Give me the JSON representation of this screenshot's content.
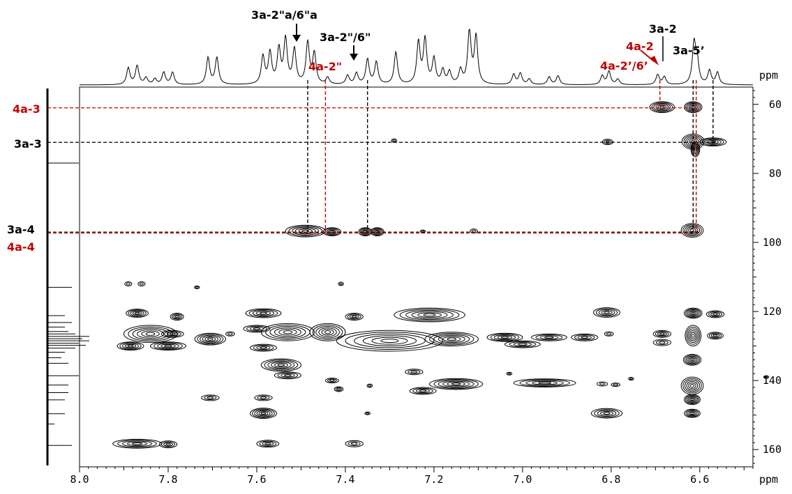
{
  "chart_data": {
    "type": "2D-NMR contour (HSQC/HMBC)",
    "x_axis": {
      "label": "ppm",
      "range": [
        8.0,
        6.48
      ],
      "ticks": [
        8.0,
        7.8,
        7.6,
        7.4,
        7.2,
        7.0,
        6.8,
        6.6
      ],
      "tick_labels": [
        "8.0",
        "7.8",
        "7.6",
        "7.4",
        "7.2",
        "7.0",
        "6.8",
        "6.6"
      ]
    },
    "y_axis": {
      "label": "ppm",
      "range": [
        55,
        165
      ],
      "ticks": [
        60,
        80,
        100,
        120,
        140,
        160
      ],
      "tick_labels": [
        "60",
        "80",
        "100",
        "120",
        "140",
        "160"
      ]
    },
    "colors": {
      "black": "#000000",
      "red": "#c00000"
    },
    "top_spectrum_peaks": [
      {
        "x": 7.89,
        "h": 0.3
      },
      {
        "x": 7.87,
        "h": 0.34
      },
      {
        "x": 7.85,
        "h": 0.12
      },
      {
        "x": 7.83,
        "h": 0.1
      },
      {
        "x": 7.81,
        "h": 0.22
      },
      {
        "x": 7.79,
        "h": 0.22
      },
      {
        "x": 7.71,
        "h": 0.48
      },
      {
        "x": 7.69,
        "h": 0.48
      },
      {
        "x": 7.586,
        "h": 0.5
      },
      {
        "x": 7.57,
        "h": 0.56
      },
      {
        "x": 7.55,
        "h": 0.62
      },
      {
        "x": 7.535,
        "h": 0.8
      },
      {
        "x": 7.515,
        "h": 0.62
      },
      {
        "x": 7.485,
        "h": 0.74
      },
      {
        "x": 7.47,
        "h": 0.55
      },
      {
        "x": 7.44,
        "h": 0.12
      },
      {
        "x": 7.395,
        "h": 0.16
      },
      {
        "x": 7.375,
        "h": 0.2
      },
      {
        "x": 7.35,
        "h": 0.45
      },
      {
        "x": 7.33,
        "h": 0.4
      },
      {
        "x": 7.286,
        "h": 0.58
      },
      {
        "x": 7.235,
        "h": 0.75
      },
      {
        "x": 7.22,
        "h": 0.8
      },
      {
        "x": 7.2,
        "h": 0.45
      },
      {
        "x": 7.18,
        "h": 0.25
      },
      {
        "x": 7.165,
        "h": 0.22
      },
      {
        "x": 7.14,
        "h": 0.25
      },
      {
        "x": 7.12,
        "h": 0.95
      },
      {
        "x": 7.105,
        "h": 0.85
      },
      {
        "x": 7.02,
        "h": 0.18
      },
      {
        "x": 7.005,
        "h": 0.2
      },
      {
        "x": 6.985,
        "h": 0.1
      },
      {
        "x": 6.94,
        "h": 0.14
      },
      {
        "x": 6.92,
        "h": 0.16
      },
      {
        "x": 6.82,
        "h": 0.16
      },
      {
        "x": 6.805,
        "h": 0.24
      },
      {
        "x": 6.785,
        "h": 0.1
      },
      {
        "x": 6.695,
        "h": 0.18
      },
      {
        "x": 6.68,
        "h": 0.14
      },
      {
        "x": 6.613,
        "h": 0.72
      },
      {
        "x": 6.606,
        "h": 0.4
      },
      {
        "x": 6.578,
        "h": 0.25
      },
      {
        "x": 6.56,
        "h": 0.22
      }
    ],
    "left_spectrum_lines": [
      {
        "y": 77.0,
        "len": 45
      },
      {
        "y": 113,
        "len": 35
      },
      {
        "y": 121.2,
        "len": 25
      },
      {
        "y": 123.2,
        "len": 35
      },
      {
        "y": 124.5,
        "len": 25
      },
      {
        "y": 125.8,
        "len": 30
      },
      {
        "y": 126.5,
        "len": 40
      },
      {
        "y": 127.2,
        "len": 60
      },
      {
        "y": 127.9,
        "len": 50
      },
      {
        "y": 128.5,
        "len": 60
      },
      {
        "y": 129.2,
        "len": 45
      },
      {
        "y": 129.8,
        "len": 55
      },
      {
        "y": 130.6,
        "len": 40
      },
      {
        "y": 131.8,
        "len": 25
      },
      {
        "y": 133.4,
        "len": 20
      },
      {
        "y": 135.0,
        "len": 30
      },
      {
        "y": 138.6,
        "len": 45
      },
      {
        "y": 141.3,
        "len": 30
      },
      {
        "y": 143.5,
        "len": 30
      },
      {
        "y": 145.6,
        "len": 25
      },
      {
        "y": 149.6,
        "len": 25
      },
      {
        "y": 152.6,
        "len": 10
      },
      {
        "y": 158.8,
        "len": 35
      }
    ],
    "cross_peaks": [
      {
        "x": 6.685,
        "y": 60.8,
        "w": 0.028,
        "h": 1.6
      },
      {
        "x": 6.615,
        "y": 60.8,
        "w": 0.02,
        "h": 1.6
      },
      {
        "x": 6.808,
        "y": 70.9,
        "w": 0.012,
        "h": 0.8
      },
      {
        "x": 6.615,
        "y": 70.8,
        "w": 0.025,
        "h": 2.2
      },
      {
        "x": 6.57,
        "y": 70.9,
        "w": 0.03,
        "h": 1.2
      },
      {
        "x": 6.61,
        "y": 73.0,
        "w": 0.01,
        "h": 2.2
      },
      {
        "x": 7.29,
        "y": 70.5,
        "w": 0.006,
        "h": 0.5
      },
      {
        "x": 7.49,
        "y": 96.7,
        "w": 0.045,
        "h": 1.7
      },
      {
        "x": 7.43,
        "y": 96.9,
        "w": 0.02,
        "h": 1.2
      },
      {
        "x": 7.355,
        "y": 96.9,
        "w": 0.015,
        "h": 1.2
      },
      {
        "x": 7.328,
        "y": 96.9,
        "w": 0.015,
        "h": 1.2
      },
      {
        "x": 7.11,
        "y": 96.7,
        "w": 0.008,
        "h": 0.6
      },
      {
        "x": 7.225,
        "y": 96.8,
        "w": 0.006,
        "h": 0.4
      },
      {
        "x": 6.617,
        "y": 96.5,
        "w": 0.025,
        "h": 2.0
      },
      {
        "x": 7.89,
        "y": 112.0,
        "w": 0.008,
        "h": 0.6
      },
      {
        "x": 7.86,
        "y": 112.0,
        "w": 0.008,
        "h": 0.6
      },
      {
        "x": 7.735,
        "y": 113.0,
        "w": 0.006,
        "h": 0.4
      },
      {
        "x": 7.41,
        "y": 112.0,
        "w": 0.006,
        "h": 0.5
      },
      {
        "x": 7.87,
        "y": 120.5,
        "w": 0.025,
        "h": 1.2
      },
      {
        "x": 7.78,
        "y": 121.5,
        "w": 0.015,
        "h": 1.0
      },
      {
        "x": 7.585,
        "y": 120.5,
        "w": 0.04,
        "h": 1.3
      },
      {
        "x": 7.38,
        "y": 121.5,
        "w": 0.02,
        "h": 1.0
      },
      {
        "x": 7.21,
        "y": 121.0,
        "w": 0.08,
        "h": 2.0
      },
      {
        "x": 6.81,
        "y": 120.3,
        "w": 0.03,
        "h": 1.4
      },
      {
        "x": 6.615,
        "y": 120.5,
        "w": 0.02,
        "h": 1.5
      },
      {
        "x": 6.565,
        "y": 120.8,
        "w": 0.02,
        "h": 1.0
      },
      {
        "x": 7.84,
        "y": 126.5,
        "w": 0.06,
        "h": 2.5
      },
      {
        "x": 7.8,
        "y": 130.0,
        "w": 0.04,
        "h": 1.2
      },
      {
        "x": 7.885,
        "y": 130.0,
        "w": 0.03,
        "h": 1.2
      },
      {
        "x": 7.79,
        "y": 126.5,
        "w": 0.025,
        "h": 1.0
      },
      {
        "x": 7.705,
        "y": 128.0,
        "w": 0.035,
        "h": 1.7
      },
      {
        "x": 7.66,
        "y": 126.5,
        "w": 0.01,
        "h": 0.6
      },
      {
        "x": 7.6,
        "y": 125.0,
        "w": 0.03,
        "h": 1.0
      },
      {
        "x": 7.53,
        "y": 126.0,
        "w": 0.06,
        "h": 2.5
      },
      {
        "x": 7.585,
        "y": 130.5,
        "w": 0.03,
        "h": 1.0
      },
      {
        "x": 7.44,
        "y": 126.0,
        "w": 0.04,
        "h": 2.5
      },
      {
        "x": 7.3,
        "y": 128.5,
        "w": 0.12,
        "h": 3.0
      },
      {
        "x": 7.16,
        "y": 128.0,
        "w": 0.06,
        "h": 2.0
      },
      {
        "x": 7.04,
        "y": 127.5,
        "w": 0.04,
        "h": 1.2
      },
      {
        "x": 7.0,
        "y": 129.5,
        "w": 0.04,
        "h": 1.0
      },
      {
        "x": 6.94,
        "y": 127.5,
        "w": 0.04,
        "h": 1.0
      },
      {
        "x": 6.86,
        "y": 127.5,
        "w": 0.03,
        "h": 1.0
      },
      {
        "x": 6.805,
        "y": 126.5,
        "w": 0.01,
        "h": 0.6
      },
      {
        "x": 6.685,
        "y": 126.5,
        "w": 0.02,
        "h": 1.0
      },
      {
        "x": 6.685,
        "y": 129.0,
        "w": 0.02,
        "h": 0.9
      },
      {
        "x": 6.615,
        "y": 127.0,
        "w": 0.018,
        "h": 3.0
      },
      {
        "x": 6.565,
        "y": 127.0,
        "w": 0.018,
        "h": 1.0
      },
      {
        "x": 7.545,
        "y": 135.5,
        "w": 0.045,
        "h": 1.8
      },
      {
        "x": 7.53,
        "y": 138.5,
        "w": 0.03,
        "h": 1.0
      },
      {
        "x": 7.43,
        "y": 140.0,
        "w": 0.015,
        "h": 0.7
      },
      {
        "x": 7.415,
        "y": 142.5,
        "w": 0.01,
        "h": 0.7
      },
      {
        "x": 7.345,
        "y": 141.5,
        "w": 0.006,
        "h": 0.5
      },
      {
        "x": 7.245,
        "y": 137.5,
        "w": 0.02,
        "h": 0.8
      },
      {
        "x": 7.225,
        "y": 143.0,
        "w": 0.03,
        "h": 1.0
      },
      {
        "x": 7.15,
        "y": 141.0,
        "w": 0.06,
        "h": 1.6
      },
      {
        "x": 7.03,
        "y": 138.0,
        "w": 0.006,
        "h": 0.4
      },
      {
        "x": 6.95,
        "y": 140.7,
        "w": 0.07,
        "h": 1.2
      },
      {
        "x": 6.82,
        "y": 141.0,
        "w": 0.012,
        "h": 0.6
      },
      {
        "x": 6.79,
        "y": 141.2,
        "w": 0.01,
        "h": 0.5
      },
      {
        "x": 6.755,
        "y": 139.5,
        "w": 0.006,
        "h": 0.4
      },
      {
        "x": 6.617,
        "y": 134.0,
        "w": 0.02,
        "h": 1.6
      },
      {
        "x": 6.617,
        "y": 141.5,
        "w": 0.025,
        "h": 2.5
      },
      {
        "x": 6.45,
        "y": 139.0,
        "w": 0.006,
        "h": 0.4
      },
      {
        "x": 7.705,
        "y": 145.0,
        "w": 0.02,
        "h": 0.8
      },
      {
        "x": 7.585,
        "y": 145.0,
        "w": 0.02,
        "h": 0.8
      },
      {
        "x": 7.585,
        "y": 149.5,
        "w": 0.03,
        "h": 1.5
      },
      {
        "x": 7.35,
        "y": 149.5,
        "w": 0.006,
        "h": 0.4
      },
      {
        "x": 6.81,
        "y": 149.5,
        "w": 0.035,
        "h": 1.4
      },
      {
        "x": 6.617,
        "y": 145.5,
        "w": 0.018,
        "h": 1.5
      },
      {
        "x": 6.617,
        "y": 149.5,
        "w": 0.018,
        "h": 1.2
      },
      {
        "x": 7.87,
        "y": 158.3,
        "w": 0.055,
        "h": 1.3
      },
      {
        "x": 7.8,
        "y": 158.5,
        "w": 0.02,
        "h": 1.0
      },
      {
        "x": 7.575,
        "y": 158.3,
        "w": 0.025,
        "h": 1.0
      },
      {
        "x": 7.38,
        "y": 158.3,
        "w": 0.02,
        "h": 0.9
      }
    ],
    "h_guides": [
      {
        "y": 61,
        "x_start": 8.0,
        "x_end": 6.61,
        "color": "red"
      },
      {
        "y": 71,
        "x_start": 8.0,
        "x_end": 6.56,
        "color": "black"
      },
      {
        "y": 97,
        "x_start": 8.0,
        "x_end": 6.6,
        "color": "black"
      },
      {
        "y": 97.3,
        "x_start": 8.0,
        "x_end": 6.6,
        "color": "red"
      }
    ],
    "v_guides": [
      {
        "x": 7.485,
        "y_start": 97,
        "color": "black"
      },
      {
        "x": 7.445,
        "y_start": 97,
        "color": "red"
      },
      {
        "x": 7.35,
        "y_start": 97,
        "color": "black"
      },
      {
        "x": 6.69,
        "y_start": 61,
        "color": "red"
      },
      {
        "x": 6.615,
        "y_start": 97,
        "color": "black"
      },
      {
        "x": 6.608,
        "y_start": 97,
        "color": "red"
      },
      {
        "x": 6.57,
        "y_start": 71,
        "color": "black"
      }
    ],
    "annotations": {
      "a1": {
        "text": "3a-2\"a/6\"a",
        "color": "black"
      },
      "a2": {
        "text": "3a-2\"/6\"",
        "color": "black"
      },
      "a3": {
        "text": "4a-2\"",
        "color": "red"
      },
      "a4": {
        "text": "3a-2",
        "color": "black"
      },
      "a5": {
        "text": "4a-2",
        "color": "red"
      },
      "a6": {
        "text": "4a-2’/6’",
        "color": "red"
      },
      "a7": {
        "text": "3a-5’",
        "color": "black"
      },
      "l1": {
        "text": "4a-3",
        "color": "red"
      },
      "l2": {
        "text": "3a-3",
        "color": "black"
      },
      "l3": {
        "text": "3a-4",
        "color": "black"
      },
      "l4": {
        "text": "4a-4",
        "color": "red"
      }
    }
  }
}
